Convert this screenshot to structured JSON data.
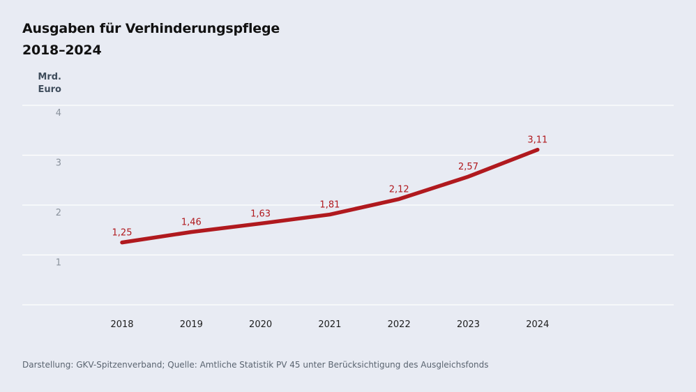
{
  "title": {
    "line1": "Ausgaben für Verhinderungspflege",
    "line2": "2018–2024"
  },
  "source": "Darstellung: GKV-Spitzenverband; Quelle: Amtliche Statistik PV 45 unter Berücksichtigung des Ausgleichsfonds",
  "colors": {
    "background": "#e8ebf3",
    "line": "#b0191e",
    "label": "#b0191e",
    "grid": "#ffffff"
  },
  "chart_data": {
    "type": "line",
    "title": "Ausgaben für Verhinderungspflege 2018–2024",
    "ylabel": "Mrd. Euro",
    "ylabel_lines": [
      "Mrd.",
      "Euro"
    ],
    "xlabel": "",
    "categories": [
      "2018",
      "2019",
      "2020",
      "2021",
      "2022",
      "2023",
      "2024"
    ],
    "series": [
      {
        "values": [
          1.25,
          1.46,
          1.63,
          1.81,
          2.12,
          2.57,
          3.11
        ],
        "labels": [
          "1,25",
          "1,46",
          "1,63",
          "1,81",
          "2,12",
          "2,57",
          "3,11"
        ]
      }
    ],
    "ylim": [
      0,
      4
    ],
    "yticks": [
      1,
      2,
      3,
      4
    ],
    "ytick_labels": [
      "1",
      "2",
      "3",
      "4"
    ],
    "grid": true,
    "legend": "none"
  }
}
